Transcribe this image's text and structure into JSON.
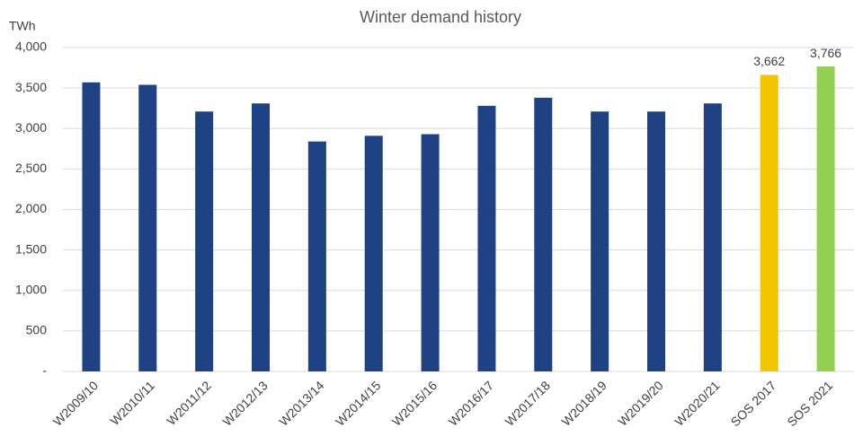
{
  "chart_data": {
    "type": "bar",
    "title": "Winter demand history",
    "y_label": "TWh",
    "categories": [
      "W2009/10",
      "W2010/11",
      "W2011/12",
      "W2012/13",
      "W2013/14",
      "W2014/15",
      "W2015/16",
      "W2016/17",
      "W2017/18",
      "W2018/19",
      "W2019/20",
      "W2020/21",
      "SOS 2017",
      "SOS 2021"
    ],
    "values": [
      3570,
      3540,
      3210,
      3310,
      2840,
      2910,
      2930,
      3280,
      3380,
      3210,
      3210,
      3310,
      3662,
      3766
    ],
    "value_labels": [
      null,
      null,
      null,
      null,
      null,
      null,
      null,
      null,
      null,
      null,
      null,
      null,
      "3,662",
      "3,766"
    ],
    "colors": [
      "#1f4284",
      "#1f4284",
      "#1f4284",
      "#1f4284",
      "#1f4284",
      "#1f4284",
      "#1f4284",
      "#1f4284",
      "#1f4284",
      "#1f4284",
      "#1f4284",
      "#1f4284",
      "#f2c500",
      "#92d050"
    ],
    "ylim": [
      0,
      4000
    ],
    "yticks": [
      {
        "value": 0,
        "label": "-"
      },
      500,
      {
        "value": 1000,
        "label": "1,000"
      },
      {
        "value": 1500,
        "label": "1,500"
      },
      {
        "value": 2000,
        "label": "2,000"
      },
      {
        "value": 2500,
        "label": "2,500"
      },
      {
        "value": 3000,
        "label": "3,000"
      },
      {
        "value": 3500,
        "label": "3,500"
      },
      {
        "value": 4000,
        "label": "4,000"
      }
    ],
    "grid": true
  }
}
